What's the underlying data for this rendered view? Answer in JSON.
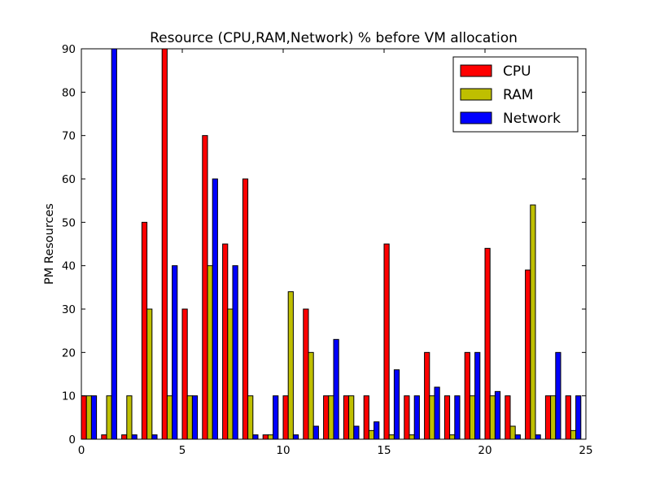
{
  "chart_data": {
    "type": "bar",
    "title": "Resource (CPU,RAM,Network) % before VM allocation",
    "xlabel": "",
    "ylabel": "PM Resources",
    "xlim": [
      0,
      25
    ],
    "ylim": [
      0,
      90
    ],
    "xticks": [
      0,
      5,
      10,
      15,
      20,
      25
    ],
    "yticks": [
      0,
      10,
      20,
      30,
      40,
      50,
      60,
      70,
      80,
      90
    ],
    "grid": false,
    "legend_position": "top-right",
    "x": [
      0,
      1,
      2,
      3,
      4,
      5,
      6,
      7,
      8,
      9,
      10,
      11,
      12,
      13,
      14,
      15,
      16,
      17,
      18,
      19,
      20,
      21,
      22,
      23,
      24
    ],
    "series": [
      {
        "name": "CPU",
        "color": "#ff0000",
        "values": [
          10,
          1,
          1,
          50,
          90,
          30,
          70,
          45,
          60,
          1,
          10,
          30,
          10,
          10,
          10,
          45,
          10,
          20,
          10,
          20,
          44,
          10,
          39,
          10,
          10
        ]
      },
      {
        "name": "RAM",
        "color": "#bfbf00",
        "values": [
          10,
          10,
          10,
          30,
          10,
          10,
          40,
          30,
          10,
          1,
          34,
          20,
          10,
          10,
          2,
          1,
          1,
          10,
          1,
          10,
          10,
          3,
          54,
          10,
          2
        ]
      },
      {
        "name": "Network",
        "color": "#0000ff",
        "values": [
          10,
          90,
          1,
          1,
          40,
          10,
          60,
          40,
          1,
          10,
          1,
          3,
          23,
          3,
          4,
          16,
          10,
          12,
          10,
          20,
          11,
          1,
          1,
          20,
          10
        ]
      }
    ]
  }
}
